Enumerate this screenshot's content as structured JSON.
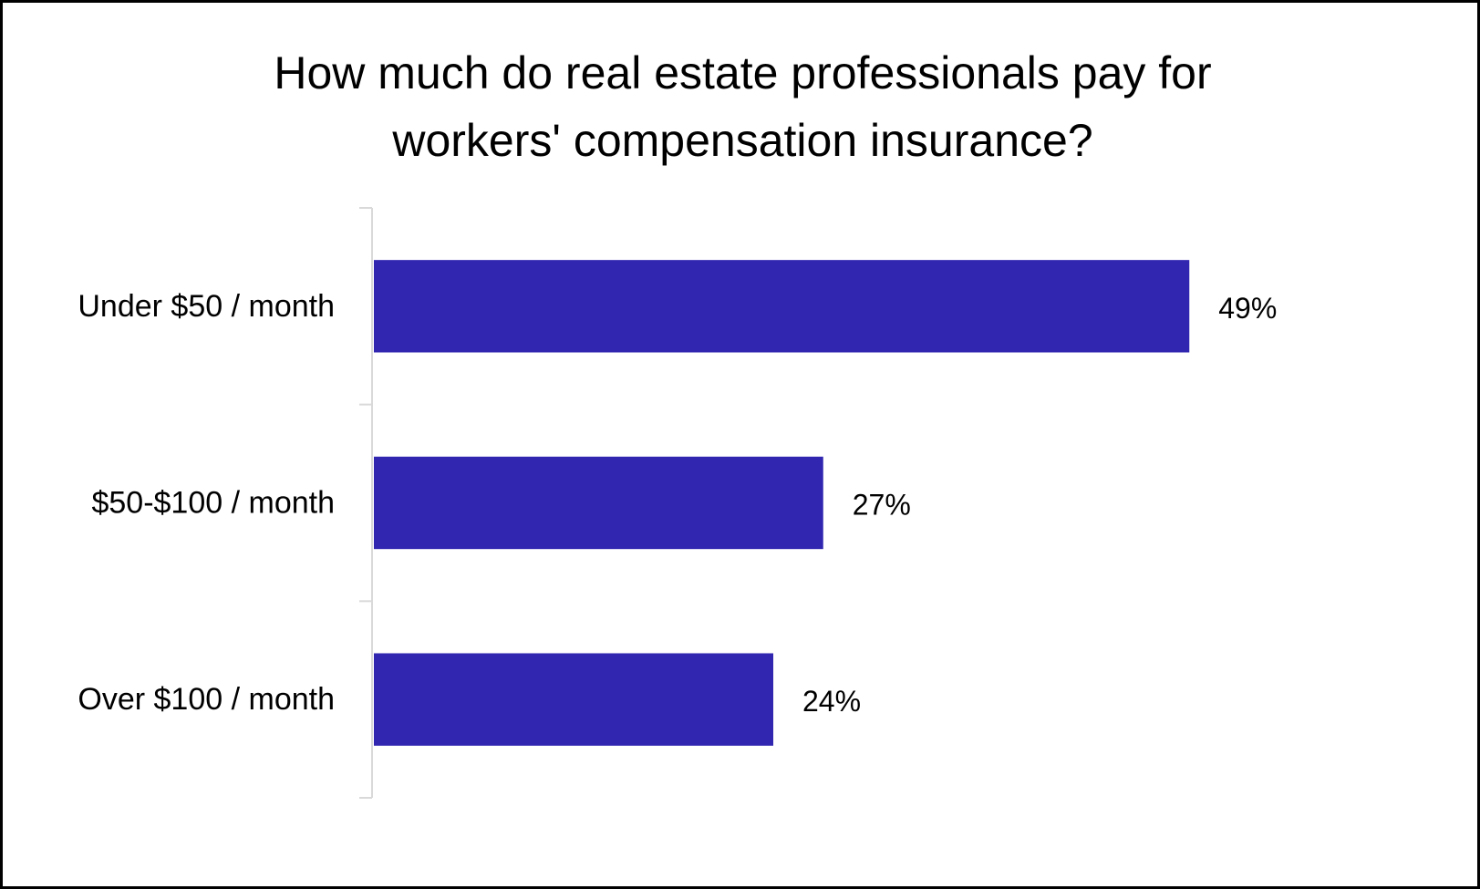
{
  "chart_data": {
    "type": "bar",
    "orientation": "horizontal",
    "title_lines": [
      "How much do real estate professionals pay for",
      "workers' compensation insurance?"
    ],
    "categories": [
      "Under $50 / month",
      "$50-$100 / month",
      "Over $100 / month"
    ],
    "values": [
      49,
      27,
      24
    ],
    "value_labels": [
      "49%",
      "27%",
      "24%"
    ],
    "xlim": [
      0,
      60
    ],
    "grid": false,
    "legend": "none",
    "bar_color": "#3126b0",
    "axis_color": "#d9d9d9"
  }
}
